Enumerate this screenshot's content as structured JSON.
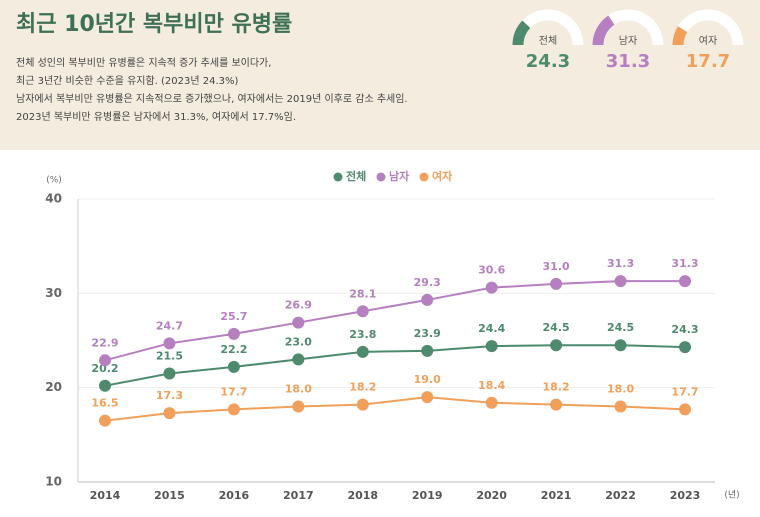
{
  "header": {
    "title": "최근 10년간 복부비만 유병률",
    "description": [
      "전체 성인의 복부비만 유병률은 지속적 증가 추세를 보이다가,",
      "최근 3년간 비슷한 수준을 유지함. (2023년 24.3%)",
      "남자에서 복부비만 유병률은 지속적으로 증가했으나, 여자에서는 2019년 이후로 감소 추세임.",
      "2023년 복부비만 유병률은 남자에서 31.3%, 여자에서 17.7%임."
    ]
  },
  "gauges": [
    {
      "label": "전체",
      "value": 24.3,
      "color": "#4e8a6e"
    },
    {
      "label": "남자",
      "value": 31.3,
      "color": "#b57fc0"
    },
    {
      "label": "여자",
      "value": 17.7,
      "color": "#f0a05a"
    }
  ],
  "chart_data": {
    "type": "line",
    "y_unit": "(%)",
    "x_unit": "(년)",
    "categories": [
      "2014",
      "2015",
      "2016",
      "2017",
      "2018",
      "2019",
      "2020",
      "2021",
      "2022",
      "2023"
    ],
    "ylim": [
      10,
      40
    ],
    "yticks": [
      10,
      20,
      30,
      40
    ],
    "grid": true,
    "legend": "top",
    "series": [
      {
        "name": "전체",
        "color": "#4e8a6e",
        "values": [
          20.2,
          21.5,
          22.2,
          23.0,
          23.8,
          23.9,
          24.4,
          24.5,
          24.5,
          24.3
        ],
        "value_labels": [
          "20.2",
          "21.5",
          "22.2",
          "23.0",
          "23.8",
          "23.9",
          "24.4",
          "24.5",
          "24.5",
          "24.3"
        ]
      },
      {
        "name": "남자",
        "color": "#b57fc0",
        "values": [
          22.9,
          24.7,
          25.7,
          26.9,
          28.1,
          29.3,
          30.6,
          31.0,
          31.3,
          31.3
        ],
        "value_labels": [
          "22.9",
          "24.7",
          "25.7",
          "26.9",
          "28.1",
          "29.3",
          "30.6",
          "31.0",
          "31.3",
          "31.3"
        ]
      },
      {
        "name": "여자",
        "color": "#f0a05a",
        "values": [
          16.5,
          17.3,
          17.7,
          18.0,
          18.2,
          19.0,
          18.4,
          18.2,
          18.0,
          17.7
        ],
        "value_labels": [
          "16.5",
          "17.3",
          "17.7",
          "18.0",
          "18.2",
          "19.0",
          "18.4",
          "18.2",
          "18.0",
          "17.7"
        ]
      }
    ]
  }
}
